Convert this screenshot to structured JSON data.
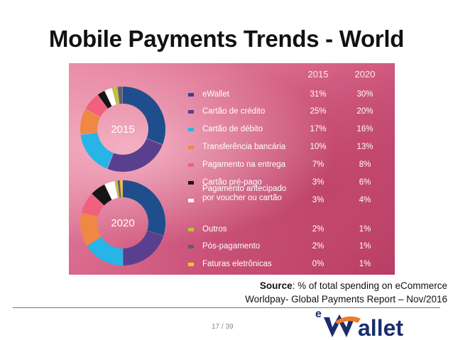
{
  "slide": {
    "title": "Mobile Payments Trends - World",
    "source_label": "Source",
    "source_text": ": % of total spending on eCommerce",
    "source_line2": "Worldpay- Global Payments Report  – Nov/2016",
    "page_number": "17 / 39",
    "logo_text": "ewallet",
    "logo_colors": {
      "navy": "#1b2d6e",
      "orange": "#ee7d2b"
    }
  },
  "chart_data": {
    "type": "pie",
    "years": [
      "2015",
      "2020"
    ],
    "categories": [
      "eWallet",
      "Cartão de crédito",
      "Cartão de débito",
      "Transferência bancária",
      "Pagamento na entrega",
      "Cartão pré-pago",
      "Pagamento antecipado por voucher ou cartão",
      "Outros",
      "Pós-pagamento",
      "Faturas eletrônicas"
    ],
    "label_lines": {
      "6": [
        "Pagamento antecipado",
        "por voucher ou cartão"
      ]
    },
    "colors": [
      "#1f4e8c",
      "#5a3f8e",
      "#27b5e8",
      "#ee8844",
      "#f2607d",
      "#151515",
      "#ffffff",
      "#bcc43a",
      "#566270",
      "#f5c518"
    ],
    "series": [
      {
        "name": "2015",
        "values_pct": [
          "31%",
          "25%",
          "17%",
          "10%",
          "7%",
          "3%",
          "3%",
          "2%",
          "2%",
          "0%"
        ],
        "values": [
          31,
          25,
          17,
          10,
          7,
          3,
          3,
          2,
          2,
          0
        ]
      },
      {
        "name": "2020",
        "values_pct": [
          "30%",
          "20%",
          "16%",
          "13%",
          "8%",
          "6%",
          "4%",
          "1%",
          "1%",
          "1%"
        ],
        "values": [
          30,
          20,
          16,
          13,
          8,
          6,
          4,
          1,
          1,
          1
        ]
      }
    ]
  }
}
